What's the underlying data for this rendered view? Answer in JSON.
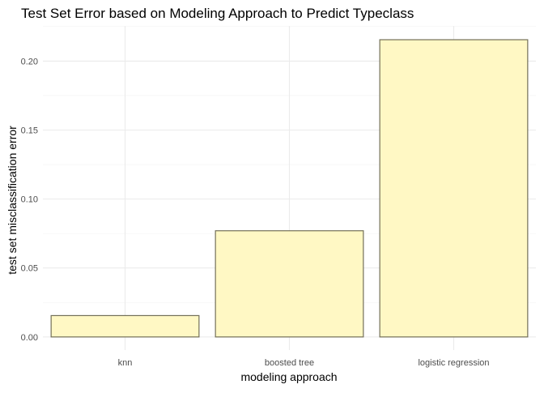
{
  "chart_data": {
    "type": "bar",
    "title": "Test Set Error based on Modeling Approach to Predict Typeclass",
    "xlabel": "modeling approach",
    "ylabel": "test set misclassification error",
    "categories": [
      "knn",
      "boosted tree",
      "logistic regression"
    ],
    "values": [
      0.0155,
      0.077,
      0.2155
    ],
    "ylim": [
      -0.0095,
      0.2255
    ],
    "yticks": [
      0.0,
      0.05,
      0.1,
      0.15,
      0.2
    ],
    "ytick_labels": [
      "0.00",
      "0.05",
      "0.10",
      "0.15",
      "0.20"
    ],
    "grid": true,
    "legend": "none",
    "colors": {
      "bar_fill": "#fff8c4",
      "bar_stroke": "#737058",
      "grid_major": "#ebebeb",
      "grid_minor": "#f3f3f3"
    }
  }
}
